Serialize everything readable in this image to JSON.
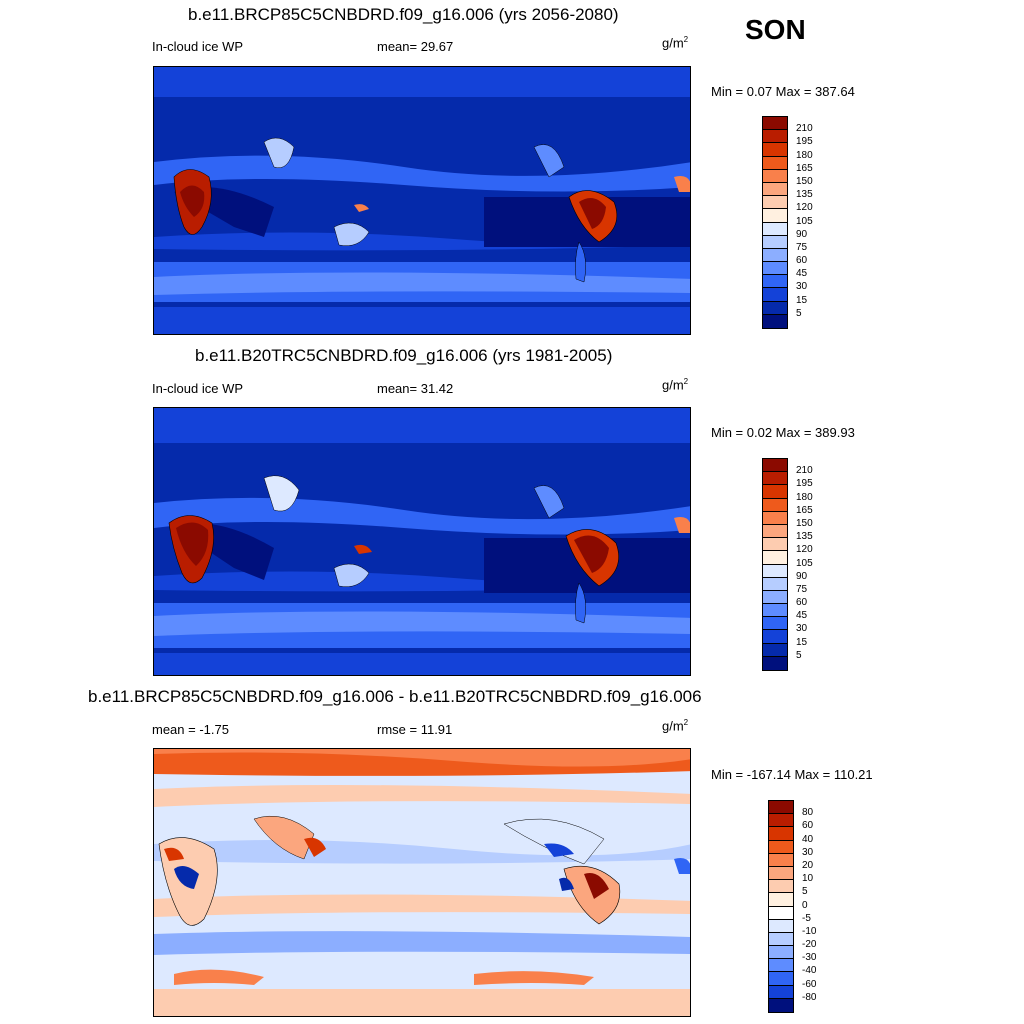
{
  "season": "SON",
  "panels": [
    {
      "title": "b.e11.BRCP85C5CNBDRD.f09_g16.006 (yrs 2056-2080)",
      "left_label": "In-cloud ice WP",
      "center_label": "mean=  29.67",
      "units": "g/m",
      "units_sup": "2",
      "minmax": "Min =   0.07 Max = 387.64",
      "colorbar": {
        "labels": [
          "210",
          "195",
          "180",
          "165",
          "150",
          "135",
          "120",
          "105",
          "90",
          "75",
          "60",
          "45",
          "30",
          "15",
          "5"
        ],
        "colors": [
          "#8b0a00",
          "#b91d00",
          "#d83500",
          "#ee5a1c",
          "#f9804b",
          "#fba67e",
          "#fdccb0",
          "#fff0e0",
          "#dde9ff",
          "#b6cdff",
          "#8caeff",
          "#5e8cff",
          "#3065f5",
          "#1442d8",
          "#052aab",
          "#00107d"
        ]
      }
    },
    {
      "title": "b.e11.B20TRC5CNBDRD.f09_g16.006 (yrs 1981-2005)",
      "left_label": "In-cloud ice WP",
      "center_label": "mean=  31.42",
      "units": "g/m",
      "units_sup": "2",
      "minmax": "Min =   0.02 Max = 389.93",
      "colorbar": {
        "labels": [
          "210",
          "195",
          "180",
          "165",
          "150",
          "135",
          "120",
          "105",
          "90",
          "75",
          "60",
          "45",
          "30",
          "15",
          "5"
        ],
        "colors": [
          "#8b0a00",
          "#b91d00",
          "#d83500",
          "#ee5a1c",
          "#f9804b",
          "#fba67e",
          "#fdccb0",
          "#fff0e0",
          "#dde9ff",
          "#b6cdff",
          "#8caeff",
          "#5e8cff",
          "#3065f5",
          "#1442d8",
          "#052aab",
          "#00107d"
        ]
      }
    },
    {
      "title": "b.e11.BRCP85C5CNBDRD.f09_g16.006 - b.e11.B20TRC5CNBDRD.f09_g16.006",
      "left_label": "mean =  -1.75",
      "center_label": "rmse =  11.91",
      "units": "g/m",
      "units_sup": "2",
      "minmax": "Min = -167.14 Max = 110.21",
      "colorbar": {
        "labels": [
          "80",
          "60",
          "40",
          "30",
          "20",
          "10",
          "5",
          "0",
          "-5",
          "-10",
          "-20",
          "-30",
          "-40",
          "-60",
          "-80"
        ],
        "colors": [
          "#8b0a00",
          "#b91d00",
          "#d83500",
          "#ee5a1c",
          "#f9804b",
          "#fba67e",
          "#fdccb0",
          "#fff0e0",
          "#ffffff",
          "#dde9ff",
          "#b6cdff",
          "#8caeff",
          "#5e8cff",
          "#3065f5",
          "#1442d8",
          "#00107d"
        ]
      }
    }
  ]
}
